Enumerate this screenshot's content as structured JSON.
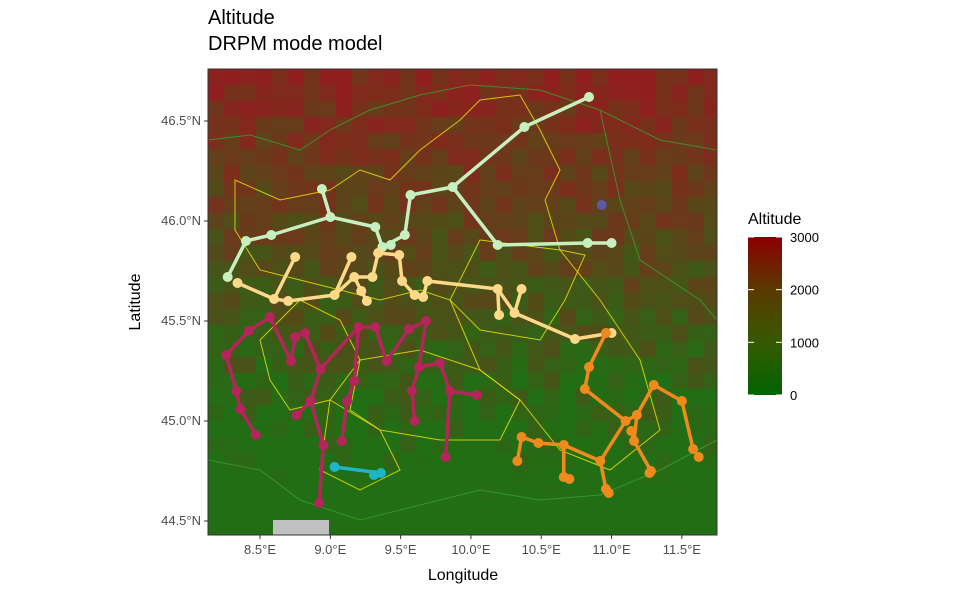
{
  "title": "Altitude",
  "subtitle": "DRPM mode model",
  "map": {
    "xlabel": "Longitude",
    "ylabel": "Latitude",
    "lon_range": [
      8.13,
      11.75
    ],
    "lat_range": [
      44.43,
      46.76
    ],
    "x_ticks": [
      {
        "value": 8.5,
        "label": "8.5°E"
      },
      {
        "value": 9.0,
        "label": "9.0°E"
      },
      {
        "value": 9.5,
        "label": "9.5°E"
      },
      {
        "value": 10.0,
        "label": "10.0°E"
      },
      {
        "value": 10.5,
        "label": "10.5°E"
      },
      {
        "value": 11.0,
        "label": "11.0°E"
      },
      {
        "value": 11.5,
        "label": "11.5°E"
      }
    ],
    "y_ticks": [
      {
        "value": 44.5,
        "label": "44.5°N"
      },
      {
        "value": 45.0,
        "label": "45.0°N"
      },
      {
        "value": 45.5,
        "label": "45.5°N"
      },
      {
        "value": 46.0,
        "label": "46.0°N"
      },
      {
        "value": 46.5,
        "label": "46.5°N"
      }
    ]
  },
  "legend": {
    "title": "Altitude",
    "min": 0,
    "max": 3000,
    "labels": [
      "3000",
      "2000",
      "1000",
      "0"
    ],
    "colors": {
      "low": "#006400",
      "mid": "#4a4a00",
      "high": "#8b0000"
    }
  },
  "clusters": [
    {
      "color": "#c7f0c0",
      "points": [
        [
          10.84,
          46.62
        ],
        [
          10.38,
          46.47
        ],
        [
          9.87,
          46.17
        ],
        [
          9.57,
          46.13
        ],
        [
          9.53,
          45.93
        ],
        [
          9.37,
          45.87
        ],
        [
          9.43,
          45.88
        ],
        [
          9.32,
          45.97
        ],
        [
          9.0,
          46.02
        ],
        [
          8.94,
          46.16
        ],
        [
          8.58,
          45.93
        ],
        [
          8.4,
          45.9
        ],
        [
          8.27,
          45.72
        ],
        [
          10.19,
          45.88
        ],
        [
          10.83,
          45.89
        ],
        [
          11.0,
          45.89
        ]
      ],
      "edges": [
        [
          0,
          1
        ],
        [
          1,
          2
        ],
        [
          2,
          3
        ],
        [
          3,
          4
        ],
        [
          4,
          5
        ],
        [
          5,
          6
        ],
        [
          5,
          7
        ],
        [
          7,
          8
        ],
        [
          8,
          9
        ],
        [
          8,
          10
        ],
        [
          10,
          11
        ],
        [
          11,
          12
        ],
        [
          2,
          13
        ],
        [
          13,
          14
        ],
        [
          14,
          15
        ]
      ]
    },
    {
      "color": "#ffd98a",
      "points": [
        [
          8.34,
          45.69
        ],
        [
          8.6,
          45.61
        ],
        [
          8.75,
          45.82
        ],
        [
          8.7,
          45.6
        ],
        [
          9.03,
          45.63
        ],
        [
          9.15,
          45.82
        ],
        [
          9.17,
          45.72
        ],
        [
          9.22,
          45.65
        ],
        [
          9.26,
          45.6
        ],
        [
          9.3,
          45.72
        ],
        [
          9.34,
          45.84
        ],
        [
          9.49,
          45.83
        ],
        [
          9.51,
          45.7
        ],
        [
          9.6,
          45.63
        ],
        [
          9.66,
          45.62
        ],
        [
          9.69,
          45.7
        ],
        [
          10.19,
          45.66
        ],
        [
          10.2,
          45.53
        ],
        [
          10.31,
          45.54
        ],
        [
          10.36,
          45.66
        ],
        [
          10.74,
          45.41
        ],
        [
          11.0,
          45.44
        ]
      ],
      "edges": [
        [
          0,
          1
        ],
        [
          1,
          2
        ],
        [
          1,
          3
        ],
        [
          3,
          4
        ],
        [
          4,
          5
        ],
        [
          4,
          6
        ],
        [
          6,
          7
        ],
        [
          7,
          8
        ],
        [
          6,
          9
        ],
        [
          9,
          10
        ],
        [
          10,
          11
        ],
        [
          11,
          12
        ],
        [
          12,
          13
        ],
        [
          13,
          14
        ],
        [
          14,
          15
        ],
        [
          15,
          16
        ],
        [
          16,
          17
        ],
        [
          16,
          18
        ],
        [
          18,
          19
        ],
        [
          18,
          20
        ],
        [
          20,
          21
        ]
      ]
    },
    {
      "color": "#b5245a",
      "points": [
        [
          8.57,
          45.52
        ],
        [
          8.42,
          45.45
        ],
        [
          8.26,
          45.33
        ],
        [
          8.33,
          45.15
        ],
        [
          8.36,
          45.06
        ],
        [
          8.47,
          44.93
        ],
        [
          8.72,
          45.3
        ],
        [
          8.75,
          45.42
        ],
        [
          8.82,
          45.44
        ],
        [
          8.93,
          45.26
        ],
        [
          8.86,
          45.1
        ],
        [
          8.95,
          44.88
        ],
        [
          8.92,
          44.59
        ],
        [
          8.76,
          45.03
        ],
        [
          9.2,
          45.47
        ],
        [
          9.17,
          45.2
        ],
        [
          9.12,
          45.1
        ],
        [
          9.08,
          44.9
        ],
        [
          9.32,
          45.47
        ],
        [
          9.4,
          45.3
        ],
        [
          9.56,
          45.46
        ],
        [
          9.68,
          45.5
        ],
        [
          9.63,
          45.27
        ],
        [
          9.58,
          45.15
        ],
        [
          9.6,
          45.0
        ],
        [
          9.78,
          45.29
        ],
        [
          9.85,
          45.15
        ],
        [
          10.04,
          45.13
        ],
        [
          9.82,
          44.82
        ]
      ],
      "edges": [
        [
          0,
          1
        ],
        [
          1,
          2
        ],
        [
          2,
          3
        ],
        [
          3,
          4
        ],
        [
          4,
          5
        ],
        [
          0,
          6
        ],
        [
          6,
          7
        ],
        [
          7,
          8
        ],
        [
          8,
          9
        ],
        [
          9,
          10
        ],
        [
          10,
          11
        ],
        [
          11,
          12
        ],
        [
          10,
          13
        ],
        [
          9,
          14
        ],
        [
          14,
          15
        ],
        [
          15,
          16
        ],
        [
          16,
          17
        ],
        [
          14,
          18
        ],
        [
          18,
          19
        ],
        [
          19,
          20
        ],
        [
          20,
          21
        ],
        [
          21,
          22
        ],
        [
          22,
          23
        ],
        [
          23,
          24
        ],
        [
          22,
          25
        ],
        [
          25,
          26
        ],
        [
          26,
          27
        ],
        [
          26,
          28
        ]
      ]
    },
    {
      "color": "#f08a1c",
      "points": [
        [
          10.96,
          45.44
        ],
        [
          10.84,
          45.27
        ],
        [
          10.81,
          45.16
        ],
        [
          11.1,
          45.0
        ],
        [
          11.18,
          45.03
        ],
        [
          11.3,
          45.18
        ],
        [
          11.5,
          45.1
        ],
        [
          11.58,
          44.86
        ],
        [
          11.62,
          44.82
        ],
        [
          11.16,
          44.9
        ],
        [
          11.14,
          44.95
        ],
        [
          10.92,
          44.8
        ],
        [
          10.96,
          44.66
        ],
        [
          10.98,
          44.64
        ],
        [
          10.66,
          44.88
        ],
        [
          10.66,
          44.72
        ],
        [
          10.7,
          44.71
        ],
        [
          10.48,
          44.89
        ],
        [
          10.36,
          44.92
        ],
        [
          10.33,
          44.8
        ],
        [
          11.28,
          44.75
        ],
        [
          11.27,
          44.74
        ]
      ],
      "edges": [
        [
          0,
          1
        ],
        [
          1,
          2
        ],
        [
          2,
          3
        ],
        [
          3,
          4
        ],
        [
          4,
          5
        ],
        [
          5,
          6
        ],
        [
          6,
          7
        ],
        [
          7,
          8
        ],
        [
          4,
          9
        ],
        [
          9,
          10
        ],
        [
          3,
          11
        ],
        [
          11,
          12
        ],
        [
          12,
          13
        ],
        [
          11,
          14
        ],
        [
          14,
          15
        ],
        [
          15,
          16
        ],
        [
          14,
          17
        ],
        [
          17,
          18
        ],
        [
          18,
          19
        ],
        [
          9,
          20
        ],
        [
          20,
          21
        ]
      ]
    },
    {
      "color": "#1fb5c6",
      "points": [
        [
          9.03,
          44.77
        ],
        [
          9.36,
          44.74
        ],
        [
          9.31,
          44.73
        ]
      ],
      "edges": [
        [
          0,
          1
        ],
        [
          1,
          2
        ]
      ]
    },
    {
      "color": "#5a5aa8",
      "points": [
        [
          10.93,
          46.08
        ]
      ],
      "edges": []
    }
  ]
}
